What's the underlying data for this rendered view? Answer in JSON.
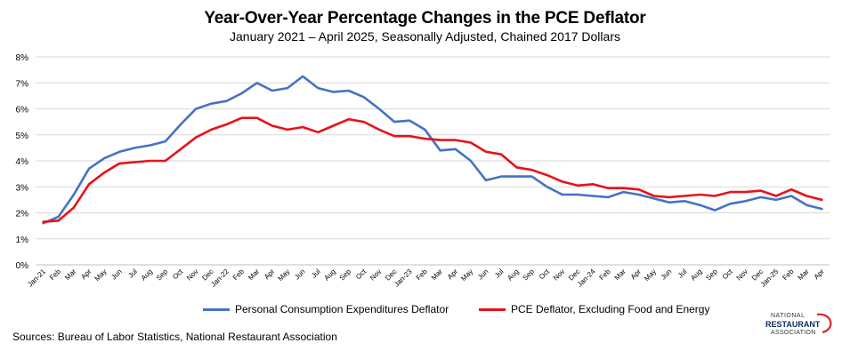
{
  "chart_data": {
    "type": "line",
    "title": "Year-Over-Year Percentage Changes in the PCE Deflator",
    "subtitle": "January 2021 – April 2025, Seasonally Adjusted, Chained 2017 Dollars",
    "ylim": [
      0,
      8
    ],
    "yticks": [
      "0%",
      "1%",
      "2%",
      "3%",
      "4%",
      "5%",
      "6%",
      "7%",
      "8%"
    ],
    "categories": [
      "Jan-21",
      "Feb",
      "Mar",
      "Apr",
      "May",
      "Jun",
      "Jul",
      "Aug",
      "Sep",
      "Oct",
      "Nov",
      "Dec",
      "Jan-22",
      "Feb",
      "Mar",
      "Apr",
      "May",
      "Jun",
      "Jul",
      "Aug",
      "Sep",
      "Oct",
      "Nov",
      "Dec",
      "Jan-23",
      "Feb",
      "Mar",
      "Apr",
      "May",
      "Jun",
      "Jul",
      "Aug",
      "Sep",
      "Oct",
      "Nov",
      "Dec",
      "Jan-24",
      "Feb",
      "Mar",
      "Apr",
      "May",
      "Jun",
      "Jul",
      "Aug",
      "Sep",
      "Oct",
      "Nov",
      "Dec",
      "Jan-25",
      "Feb",
      "Mar",
      "Apr"
    ],
    "series": [
      {
        "name": "Personal Consumption Expenditures Deflator",
        "color": "#4472c4",
        "values": [
          1.6,
          1.85,
          2.7,
          3.7,
          4.1,
          4.35,
          4.5,
          4.6,
          4.75,
          5.4,
          6.0,
          6.2,
          6.3,
          6.6,
          7.0,
          6.7,
          6.8,
          7.25,
          6.8,
          6.65,
          6.7,
          6.45,
          6.0,
          5.5,
          5.55,
          5.2,
          4.4,
          4.45,
          4.0,
          3.25,
          3.4,
          3.4,
          3.4,
          3.0,
          2.7,
          2.7,
          2.65,
          2.6,
          2.8,
          2.7,
          2.55,
          2.4,
          2.45,
          2.3,
          2.1,
          2.35,
          2.45,
          2.6,
          2.5,
          2.65,
          2.3,
          2.15
        ]
      },
      {
        "name": "PCE Deflator, Excluding Food and Energy",
        "color": "#e8111a",
        "values": [
          1.65,
          1.7,
          2.2,
          3.1,
          3.55,
          3.9,
          3.95,
          4.0,
          4.0,
          4.45,
          4.9,
          5.2,
          5.4,
          5.65,
          5.65,
          5.35,
          5.2,
          5.3,
          5.1,
          5.35,
          5.6,
          5.5,
          5.2,
          4.95,
          4.95,
          4.85,
          4.8,
          4.8,
          4.7,
          4.35,
          4.25,
          3.75,
          3.65,
          3.45,
          3.2,
          3.05,
          3.1,
          2.95,
          2.95,
          2.9,
          2.65,
          2.6,
          2.65,
          2.7,
          2.65,
          2.8,
          2.8,
          2.85,
          2.65,
          2.9,
          2.65,
          2.5
        ]
      }
    ],
    "legend": "bottom",
    "grid": true
  },
  "sources": "Sources: Bureau of Labor Statistics, National Restaurant Association",
  "logo": {
    "line1": "NATIONAL",
    "line2": "RESTAURANT",
    "line3": "ASSOCIATION"
  }
}
